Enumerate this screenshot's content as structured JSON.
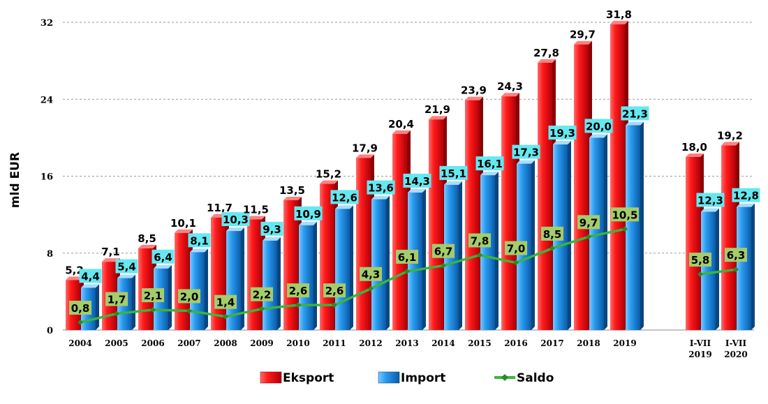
{
  "chart_data": {
    "type": "bar",
    "ylabel": "mld EUR",
    "ylim": [
      0,
      32
    ],
    "yticks": [
      "0",
      "8",
      "16",
      "24",
      "32"
    ],
    "grid": true,
    "categories": [
      [
        "2004"
      ],
      [
        "2005"
      ],
      [
        "2006"
      ],
      [
        "2007"
      ],
      [
        "2008"
      ],
      [
        "2009"
      ],
      [
        "2010"
      ],
      [
        "2011"
      ],
      [
        "2012"
      ],
      [
        "2013"
      ],
      [
        "2014"
      ],
      [
        "2015"
      ],
      [
        "2016"
      ],
      [
        "2017"
      ],
      [
        "2018"
      ],
      [
        "2019"
      ],
      [
        "I-VII",
        "2019"
      ],
      [
        "I-VII",
        "2020"
      ]
    ],
    "series": [
      {
        "name": "Eksport",
        "type": "bar",
        "color": "#e8141c",
        "values": [
          5.2,
          7.1,
          8.5,
          10.1,
          11.7,
          11.5,
          13.5,
          15.2,
          17.9,
          20.4,
          21.9,
          23.9,
          24.3,
          27.8,
          29.7,
          31.8,
          18.0,
          19.2
        ],
        "labels": [
          "5,2",
          "7,1",
          "8,5",
          "10,1",
          "11,7",
          "11,5",
          "13,5",
          "15,2",
          "17,9",
          "20,4",
          "21,9",
          "23,9",
          "24,3",
          "27,8",
          "29,7",
          "31,8",
          "18,0",
          "19,2"
        ]
      },
      {
        "name": "Import",
        "type": "bar",
        "color": "#1e90dc",
        "values": [
          4.4,
          5.4,
          6.4,
          8.1,
          10.3,
          9.3,
          10.9,
          12.6,
          13.6,
          14.3,
          15.1,
          16.1,
          17.3,
          19.3,
          20.0,
          21.3,
          12.3,
          12.8
        ],
        "labels": [
          "4,4",
          "5,4",
          "6,4",
          "8,1",
          "10,3",
          "9,3",
          "10,9",
          "12,6",
          "13,6",
          "14,3",
          "15,1",
          "16,1",
          "17,3",
          "19,3",
          "20,0",
          "21,3",
          "12,3",
          "12,8"
        ]
      },
      {
        "name": "Saldo",
        "type": "line",
        "color": "#3cb43c",
        "values": [
          0.8,
          1.7,
          2.1,
          2.0,
          1.4,
          2.2,
          2.6,
          2.6,
          4.3,
          6.1,
          6.7,
          7.8,
          7.0,
          8.5,
          9.7,
          10.5,
          5.8,
          6.3
        ],
        "labels": [
          "0,8",
          "1,7",
          "2,1",
          "2,0",
          "1,4",
          "2,2",
          "2,6",
          "2,6",
          "4,3",
          "6,1",
          "6,7",
          "7,8",
          "7,0",
          "8,5",
          "9,7",
          "10,5",
          "5,8",
          "6,3"
        ]
      }
    ],
    "legend_position": "bottom",
    "colors": {
      "import_label_bg": "#66e8f0",
      "saldo_label_bg": "#a4cc6c"
    }
  }
}
